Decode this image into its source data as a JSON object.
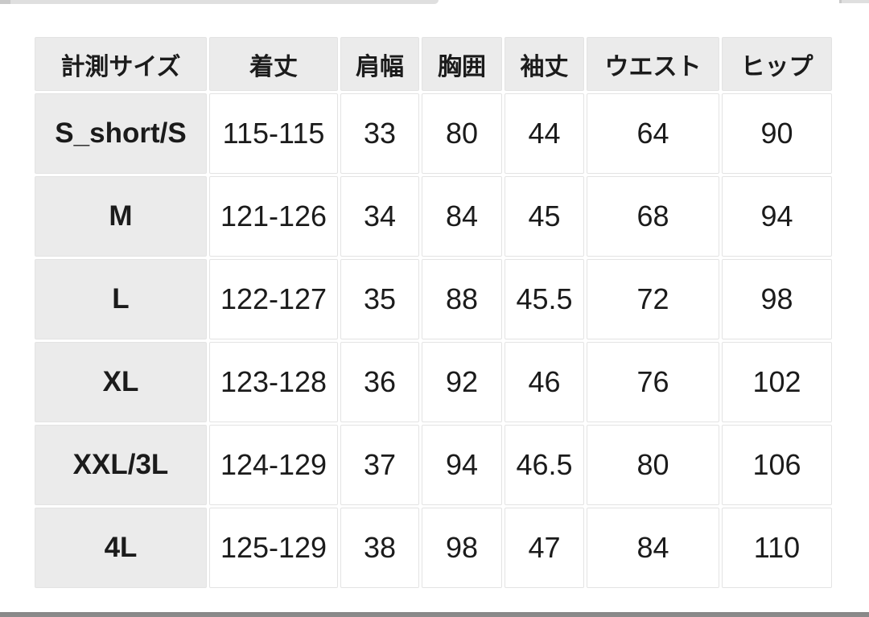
{
  "table": {
    "columns": [
      "計測サイズ",
      "着丈",
      "肩幅",
      "胸囲",
      "袖丈",
      "ウエスト",
      "ヒップ"
    ],
    "rows": [
      {
        "label": "S_short/S",
        "values": [
          "115-115",
          "33",
          "80",
          "44",
          "64",
          "90"
        ]
      },
      {
        "label": "M",
        "values": [
          "121-126",
          "34",
          "84",
          "45",
          "68",
          "94"
        ]
      },
      {
        "label": "L",
        "values": [
          "122-127",
          "35",
          "88",
          "45.5",
          "72",
          "98"
        ]
      },
      {
        "label": "XL",
        "values": [
          "123-128",
          "36",
          "92",
          "46",
          "76",
          "102"
        ]
      },
      {
        "label": "XXL/3L",
        "values": [
          "124-129",
          "37",
          "94",
          "46.5",
          "80",
          "106"
        ]
      },
      {
        "label": "4L",
        "values": [
          "125-129",
          "38",
          "98",
          "47",
          "84",
          "110"
        ]
      }
    ]
  },
  "colors": {
    "page_bg": "#ffffff",
    "header_cell_bg": "#ebebeb",
    "data_cell_bg": "#ffffff",
    "cell_border": "#e3e3e3",
    "text": "#1b1b1b",
    "top_fragment": "#dfdfdf",
    "bottom_bar": "#8a8a8a"
  },
  "chart_data": {
    "type": "table",
    "title": "",
    "columns": [
      "計測サイズ",
      "着丈",
      "肩幅",
      "胸囲",
      "袖丈",
      "ウエスト",
      "ヒップ"
    ],
    "rows": [
      [
        "S_short/S",
        "115-115",
        "33",
        "80",
        "44",
        "64",
        "90"
      ],
      [
        "M",
        "121-126",
        "34",
        "84",
        "45",
        "68",
        "94"
      ],
      [
        "L",
        "122-127",
        "35",
        "88",
        "45.5",
        "72",
        "98"
      ],
      [
        "XL",
        "123-128",
        "36",
        "92",
        "46",
        "76",
        "102"
      ],
      [
        "XXL/3L",
        "124-129",
        "37",
        "94",
        "46.5",
        "80",
        "106"
      ],
      [
        "4L",
        "125-129",
        "38",
        "98",
        "47",
        "84",
        "110"
      ]
    ]
  }
}
